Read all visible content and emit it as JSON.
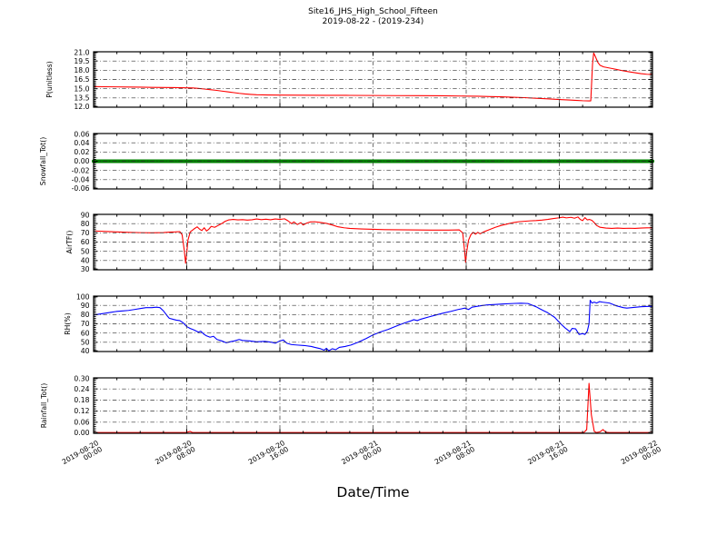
{
  "title": {
    "line1": "Site16_JHS_High_School_Fifteen",
    "line2": "2019-08-22 - (2019-234)"
  },
  "xlabel": "Date/Time",
  "x_axis": {
    "start_label": "2019-08-20 00:00",
    "end_label": "2019-08-22 00:00",
    "span_hours": 48,
    "minor_step_hours": 2,
    "major_ticks": [
      {
        "hour": 0,
        "date": "2019-08-20",
        "time": "00:00"
      },
      {
        "hour": 8,
        "date": "2019-08-20",
        "time": "08:00"
      },
      {
        "hour": 16,
        "date": "2019-08-20",
        "time": "16:00"
      },
      {
        "hour": 24,
        "date": "2019-08-21",
        "time": "00:00"
      },
      {
        "hour": 32,
        "date": "2019-08-21",
        "time": "08:00"
      },
      {
        "hour": 40,
        "date": "2019-08-21",
        "time": "16:00"
      },
      {
        "hour": 48,
        "date": "2019-08-22",
        "time": "00:00"
      }
    ]
  },
  "colors": {
    "p_line": "#ff0000",
    "snowfall_line": "#008000",
    "airtf_line": "#ff0000",
    "rh_line": "#0000ff",
    "rainfall_line": "#ff0000",
    "grid": "#333333",
    "frame": "#000000",
    "background": "#ffffff"
  },
  "chart_data": [
    {
      "type": "line",
      "name": "p",
      "ylabel": "P(unitless)",
      "ylim": [
        12.0,
        21.0
      ],
      "ytick_values": [
        12.0,
        13.5,
        15.0,
        16.5,
        18.0,
        19.5,
        21.0
      ],
      "ytick_labels": [
        "12.0",
        "13.5",
        "15.0",
        "16.5",
        "18.0",
        "19.5",
        "21.0"
      ],
      "y_minor_step": 0.25,
      "color_key": "p_line",
      "line_width": 1.1,
      "x_hours": [
        0,
        1,
        2,
        3,
        4,
        5,
        6,
        7,
        8,
        8.5,
        9,
        9.5,
        10,
        10.5,
        11,
        11.5,
        12,
        12.5,
        13,
        13.5,
        14,
        15,
        16,
        18,
        20,
        22,
        24,
        26,
        28,
        30,
        32,
        33,
        34,
        35,
        36,
        37,
        38,
        39,
        40,
        41,
        41.5,
        42,
        42.5,
        42.7,
        42.85,
        42.95,
        43.1,
        43.3,
        43.5,
        43.8,
        44.2,
        44.6,
        45,
        45.5,
        46,
        46.5,
        47,
        47.5,
        48
      ],
      "values": [
        15.35,
        15.32,
        15.3,
        15.28,
        15.25,
        15.22,
        15.2,
        15.18,
        15.15,
        15.12,
        15.05,
        14.95,
        14.85,
        14.75,
        14.62,
        14.5,
        14.38,
        14.25,
        14.15,
        14.08,
        14.02,
        13.98,
        13.96,
        13.95,
        13.93,
        13.92,
        13.9,
        13.88,
        13.87,
        13.85,
        13.8,
        13.78,
        13.72,
        13.68,
        13.62,
        13.55,
        13.45,
        13.35,
        13.25,
        13.15,
        13.1,
        13.05,
        13.03,
        13.03,
        19.0,
        20.8,
        20.2,
        19.3,
        18.8,
        18.55,
        18.4,
        18.25,
        18.1,
        17.9,
        17.75,
        17.6,
        17.45,
        17.35,
        17.3
      ]
    },
    {
      "type": "line",
      "name": "snowfall",
      "ylabel": "Snowfall_Tot()",
      "ylim": [
        -0.06,
        0.06
      ],
      "ytick_values": [
        -0.06,
        -0.04,
        -0.02,
        0.0,
        0.02,
        0.04,
        0.06
      ],
      "ytick_labels": [
        "-0.06",
        "-0.04",
        "-0.02",
        "0.00",
        "0.02",
        "0.04",
        "0.06"
      ],
      "y_minor_step": 0.004,
      "color_key": "snowfall_line",
      "line_width": 4,
      "x_hours": [
        0,
        48
      ],
      "values": [
        0.0,
        0.0
      ]
    },
    {
      "type": "line",
      "name": "airtf",
      "ylabel": "AirTF()",
      "ylim": [
        30,
        90
      ],
      "ytick_values": [
        30,
        40,
        50,
        60,
        70,
        80,
        90
      ],
      "ytick_labels": [
        "30",
        "40",
        "50",
        "60",
        "70",
        "80",
        "90"
      ],
      "y_minor_step": 2,
      "color_key": "airtf_line",
      "line_width": 1.1,
      "x_hours": [
        0,
        0.5,
        1,
        1.5,
        2,
        3,
        4,
        5,
        6,
        6.5,
        7,
        7.4,
        7.6,
        7.8,
        7.9,
        8.0,
        8.1,
        8.3,
        8.6,
        8.9,
        9.1,
        9.3,
        9.5,
        9.7,
        9.9,
        10.1,
        10.4,
        10.7,
        11,
        11.3,
        11.6,
        12,
        12.4,
        12.8,
        13.2,
        13.6,
        14,
        14.4,
        14.8,
        15.2,
        15.6,
        16,
        16.4,
        16.7,
        17,
        17.2,
        17.5,
        17.8,
        18,
        18.3,
        18.6,
        19,
        19.5,
        20,
        20.5,
        21,
        21.5,
        22,
        23,
        24,
        25,
        26,
        27,
        28,
        29,
        30,
        30.5,
        31,
        31.4,
        31.7,
        31.85,
        31.95,
        32.05,
        32.2,
        32.4,
        32.6,
        32.8,
        33,
        33.2,
        33.5,
        34,
        34.5,
        35,
        35.5,
        36,
        36.5,
        37,
        37.5,
        38,
        38.5,
        39,
        39.5,
        40,
        40.3,
        40.6,
        41,
        41.3,
        41.6,
        41.8,
        42,
        42.2,
        42.4,
        42.6,
        42.8,
        43,
        43.2,
        43.5,
        44,
        44.5,
        45,
        45.5,
        46,
        46.5,
        47,
        47.5,
        48
      ],
      "values": [
        72,
        71.8,
        71.5,
        71.2,
        71,
        70.5,
        70.2,
        70,
        70.3,
        70.8,
        71,
        71.3,
        68,
        50,
        37,
        48,
        62,
        71,
        74,
        76.5,
        74,
        72.5,
        75.5,
        72,
        74,
        77,
        76,
        78,
        80,
        82.5,
        84,
        84.5,
        84,
        84.3,
        83.8,
        84.2,
        85,
        84.3,
        84.8,
        84.2,
        85,
        84.5,
        85.2,
        83,
        80,
        81.8,
        79,
        81,
        78.5,
        80.5,
        81.8,
        82,
        81.2,
        80.2,
        78.5,
        76.5,
        75.5,
        74.8,
        74.2,
        73.8,
        73.5,
        73.3,
        73.2,
        73.1,
        73,
        73,
        73,
        73.1,
        73.2,
        70,
        52,
        38,
        50,
        62,
        68,
        70.5,
        68.5,
        70.5,
        69,
        71,
        73.5,
        76,
        78,
        79.5,
        81,
        82,
        82.5,
        83,
        83.3,
        83.8,
        84.5,
        85.5,
        86.3,
        87,
        86.2,
        86.8,
        85.8,
        87.2,
        84.5,
        83.2,
        86.5,
        84,
        84.5,
        83.5,
        81,
        78,
        76,
        75.2,
        74.8,
        75.2,
        74.8,
        75,
        74.8,
        75.2,
        75.4,
        75.5
      ]
    },
    {
      "type": "line",
      "name": "rh",
      "ylabel": "RH(%)",
      "ylim": [
        40,
        100
      ],
      "ytick_values": [
        40,
        50,
        60,
        70,
        80,
        90,
        100
      ],
      "ytick_labels": [
        "40",
        "50",
        "60",
        "70",
        "80",
        "90",
        "100"
      ],
      "y_minor_step": 2,
      "color_key": "rh_line",
      "line_width": 1.1,
      "x_hours": [
        0,
        0.5,
        1,
        1.5,
        2,
        2.5,
        3,
        3.5,
        4,
        4.5,
        5,
        5.4,
        5.7,
        6,
        6.3,
        6.5,
        6.8,
        7.1,
        7.4,
        7.7,
        8,
        8.3,
        8.6,
        9,
        9.2,
        9.5,
        9.7,
        10,
        10.3,
        10.6,
        11,
        11.4,
        11.7,
        12.1,
        12.5,
        12.8,
        13.4,
        14,
        14.7,
        15.3,
        15.6,
        16,
        16.3,
        16.6,
        17,
        17.5,
        18.1,
        18.7,
        19,
        19.5,
        19.8,
        20,
        20.2,
        20.5,
        20.8,
        21.1,
        21.6,
        22.1,
        22.7,
        23.4,
        24,
        24.6,
        25.3,
        25.9,
        26.5,
        27.2,
        27.5,
        27.8,
        28.1,
        28.8,
        29.4,
        30,
        30.7,
        31.3,
        31.9,
        32.2,
        32.5,
        33.2,
        33.8,
        34.5,
        35.1,
        36,
        36.7,
        37.3,
        37.6,
        38,
        38.3,
        38.6,
        39,
        39.3,
        39.6,
        39.9,
        40.2,
        40.5,
        40.7,
        40.9,
        41.1,
        41.4,
        41.7,
        42,
        42.2,
        42.4,
        42.55,
        42.65,
        42.8,
        43,
        43.2,
        43.45,
        43.7,
        44,
        44.3,
        44.6,
        44.9,
        45.2,
        45.5,
        45.8,
        46.2,
        46.6,
        47,
        47.4,
        48
      ],
      "values": [
        79.5,
        80.5,
        81.5,
        82.5,
        83.5,
        84,
        84.5,
        85.5,
        86.5,
        87.5,
        87.5,
        88,
        87.5,
        84,
        79,
        76,
        75,
        74,
        73.5,
        71,
        67,
        65,
        63.5,
        61,
        62,
        58.5,
        57,
        55.5,
        56.5,
        53,
        51.5,
        49.5,
        50.5,
        51.5,
        53,
        52,
        51.5,
        50.5,
        51,
        50,
        49,
        51.5,
        52.5,
        49,
        47.5,
        47,
        46.5,
        45.5,
        44.5,
        43,
        41.5,
        43.5,
        40.5,
        43,
        42,
        44.5,
        45.5,
        47,
        50,
        54,
        58,
        61,
        64,
        67,
        70,
        73,
        74.5,
        73.5,
        75,
        77.5,
        79.5,
        81.5,
        83.5,
        85.5,
        87,
        85.5,
        88,
        89.5,
        90.5,
        91,
        91.5,
        92,
        92.3,
        92,
        90.5,
        88.5,
        86.5,
        84.5,
        82,
        79.5,
        77,
        73,
        69,
        65.5,
        63.5,
        61.5,
        65,
        64.5,
        58.5,
        59.5,
        58.5,
        62,
        70,
        95.5,
        92.5,
        93.5,
        92.5,
        94,
        93.5,
        93,
        92.5,
        91,
        89.5,
        88.5,
        87.5,
        87,
        87.5,
        88,
        88.5,
        88.8,
        89
      ]
    },
    {
      "type": "line",
      "name": "rainfall",
      "ylabel": "Rainfall_Tot()",
      "ylim": [
        0.0,
        0.3
      ],
      "ytick_values": [
        0.0,
        0.06,
        0.12,
        0.18,
        0.24,
        0.3
      ],
      "ytick_labels": [
        "0.00",
        "0.06",
        "0.12",
        "0.18",
        "0.24",
        "0.30"
      ],
      "y_minor_step": 0.012,
      "color_key": "rainfall_line",
      "line_width": 1.1,
      "x_hours": [
        0,
        7.9,
        8.1,
        8.3,
        8.5,
        42.1,
        42.35,
        42.55,
        42.75,
        43,
        43.2,
        43.5,
        43.75,
        44,
        44.3,
        48
      ],
      "values": [
        0,
        0,
        0.007,
        0.01,
        0,
        0,
        0.02,
        0.27,
        0.1,
        0.01,
        0,
        0.008,
        0.02,
        0.005,
        0,
        0
      ]
    }
  ]
}
